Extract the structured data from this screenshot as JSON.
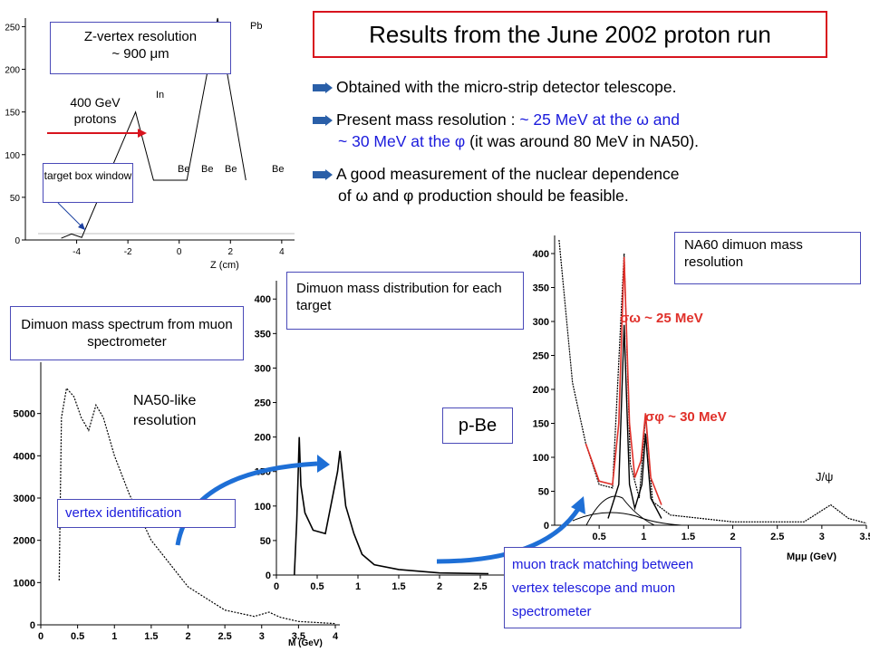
{
  "slide": {
    "title": "Results from the June 2002 proton run",
    "bullets": {
      "b1": "Obtained with the micro-strip detector telescope.",
      "b2_a": "Present mass resolution :",
      "b2_b": " ~ 25 MeV at the ω and",
      "b2_c": "~ 30 MeV at the φ",
      "b2_d": " (it was around 80 MeV in NA50).",
      "b3_a": "A good measurement of the nuclear dependence",
      "b3_b": "of ω and φ production should be feasible."
    },
    "labels": {
      "zvertex_title": "Z-vertex resolution",
      "zvertex_value": "~ 900 μm",
      "beam": "400 GeV protons",
      "target_box": "target box window",
      "muon_spec": "Dimuon mass spectrum from muon spectrometer",
      "na50": "NA50-like resolution",
      "per_target": "Dimuon mass distribution for each target",
      "pbe": "p-Be",
      "na60": "NA60 dimuon mass resolution",
      "sigma_omega": "σω ~ 25 MeV",
      "sigma_phi": "σφ ~ 30 MeV",
      "jpsi": "J/ψ",
      "vertex_id": "vertex identification",
      "track_match": "muon track matching between vertex telescope and muon spectrometer"
    },
    "colors": {
      "title_border": "#d8141e",
      "blue_text": "#1b1bdc",
      "fit_red": "#e0302a",
      "arrow_blue": "#1e6fd6"
    }
  },
  "chart_data": [
    {
      "type": "line",
      "xlabel": "Z (cm)",
      "ylabel": "",
      "xlim": [
        -6,
        4.5
      ],
      "ylim": [
        0,
        260
      ],
      "x_ticks": [
        "-4",
        "-2",
        "0",
        "2",
        "4"
      ],
      "y_ticks": [
        "0",
        "50",
        "100",
        "150",
        "200",
        "250"
      ],
      "peak_labels": [
        "In",
        "Be",
        "Be",
        "Be",
        "Pb",
        "Be"
      ],
      "series": [
        {
          "points": [
            [
              -4.6,
              2
            ],
            [
              -4.2,
              7
            ],
            [
              -3.8,
              3
            ],
            [
              -1.7,
              150
            ],
            [
              -1.0,
              70
            ],
            [
              -0.35,
              70
            ],
            [
              0.3,
              70
            ],
            [
              1.5,
              260
            ],
            [
              2.6,
              70
            ]
          ]
        }
      ]
    },
    {
      "type": "line",
      "xlabel": "M (GeV)",
      "xlim": [
        0,
        4
      ],
      "ylim": [
        0,
        6000
      ],
      "x_ticks": [
        "0",
        "0.5",
        "1",
        "1.5",
        "2",
        "2.5",
        "3",
        "3.5",
        "4"
      ],
      "y_ticks": [
        "0",
        "1000",
        "2000",
        "3000",
        "4000",
        "5000"
      ],
      "series": [
        {
          "points": [
            [
              0.25,
              1050
            ],
            [
              0.28,
              4900
            ],
            [
              0.35,
              5600
            ],
            [
              0.45,
              5400
            ],
            [
              0.55,
              4900
            ],
            [
              0.65,
              4600
            ],
            [
              0.75,
              5200
            ],
            [
              0.85,
              4900
            ],
            [
              1.0,
              4000
            ],
            [
              1.2,
              3100
            ],
            [
              1.5,
              2000
            ],
            [
              2.0,
              900
            ],
            [
              2.5,
              350
            ],
            [
              2.9,
              200
            ],
            [
              3.1,
              300
            ],
            [
              3.25,
              180
            ],
            [
              3.5,
              80
            ],
            [
              4.0,
              30
            ]
          ]
        }
      ]
    },
    {
      "type": "line",
      "xlabel": "",
      "xlim": [
        0,
        2.8
      ],
      "ylim": [
        0,
        420
      ],
      "x_ticks": [
        "0",
        "0.5",
        "1",
        "1.5",
        "2",
        "2.5"
      ],
      "y_ticks": [
        "0",
        "50",
        "100",
        "150",
        "200",
        "250",
        "300",
        "350",
        "400"
      ],
      "series": [
        {
          "points": [
            [
              0.22,
              0
            ],
            [
              0.25,
              80
            ],
            [
              0.28,
              200
            ],
            [
              0.3,
              130
            ],
            [
              0.35,
              90
            ],
            [
              0.45,
              65
            ],
            [
              0.6,
              60
            ],
            [
              0.75,
              150
            ],
            [
              0.78,
              180
            ],
            [
              0.85,
              100
            ],
            [
              0.95,
              60
            ],
            [
              1.05,
              30
            ],
            [
              1.2,
              15
            ],
            [
              1.5,
              8
            ],
            [
              2.0,
              3
            ],
            [
              2.6,
              2
            ]
          ]
        }
      ]
    },
    {
      "type": "line",
      "xlabel": "Mμμ (GeV)",
      "xlim": [
        0,
        3.5
      ],
      "ylim": [
        0,
        420
      ],
      "x_ticks": [
        "0.5",
        "1",
        "1.5",
        "2",
        "2.5",
        "3",
        "3.5"
      ],
      "y_ticks": [
        "0",
        "50",
        "100",
        "150",
        "200",
        "250",
        "300",
        "350",
        "400"
      ],
      "series": [
        {
          "points": [
            [
              0.05,
              420
            ],
            [
              0.2,
              210
            ],
            [
              0.35,
              120
            ],
            [
              0.5,
              60
            ],
            [
              0.65,
              55
            ],
            [
              0.78,
              400
            ],
            [
              0.85,
              90
            ],
            [
              0.95,
              40
            ],
            [
              1.02,
              160
            ],
            [
              1.1,
              35
            ],
            [
              1.3,
              15
            ],
            [
              2.0,
              5
            ],
            [
              2.8,
              5
            ],
            [
              3.1,
              30
            ],
            [
              3.3,
              10
            ],
            [
              3.5,
              3
            ]
          ]
        },
        {
          "points": [
            [
              0.6,
              10
            ],
            [
              0.72,
              60
            ],
            [
              0.78,
              295
            ],
            [
              0.84,
              60
            ],
            [
              0.9,
              25
            ],
            [
              0.98,
              60
            ],
            [
              1.02,
              135
            ],
            [
              1.08,
              40
            ],
            [
              1.2,
              10
            ]
          ]
        }
      ]
    }
  ]
}
